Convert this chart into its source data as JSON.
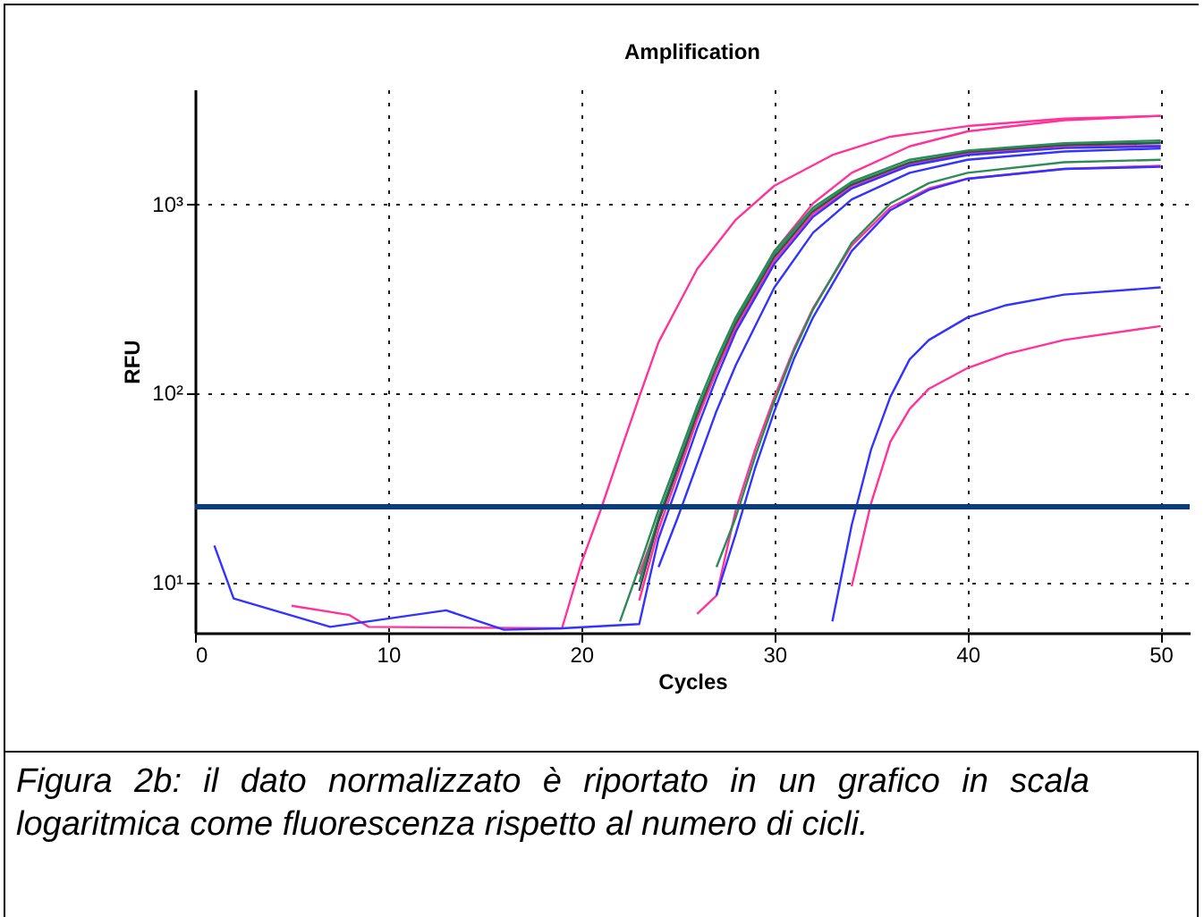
{
  "chart_data": {
    "type": "line",
    "title": "Amplification",
    "xlabel": "Cycles",
    "ylabel": "RFU",
    "log": "y",
    "grid": true,
    "marker": "none",
    "line_style": "solid",
    "xlim": [
      0,
      51.5
    ],
    "xticks": [
      0,
      10,
      20,
      30,
      40,
      50
    ],
    "ylim": [
      5.4,
      4000
    ],
    "yticks": [
      {
        "value": 10,
        "label": "10¹"
      },
      {
        "value": 100,
        "label": "10²"
      },
      {
        "value": 1000,
        "label": "10³"
      }
    ],
    "ref_lines": [
      {
        "axis": "y",
        "value": 25,
        "color": "#0b3d7a"
      }
    ],
    "annotations": [
      "Figura 2b: il dato normalizzato è riportato in un grafico in scala logaritmica come fluorescenza rispetto al numero di cicli."
    ],
    "series": [
      {
        "color": "#ff3399",
        "x": [
          5,
          8,
          9,
          19,
          20,
          21,
          22,
          23,
          24,
          26,
          28,
          30,
          33,
          36,
          40,
          45,
          50
        ],
        "values": [
          7.5,
          6.7,
          5.8,
          5.7,
          12.6,
          24,
          48,
          95,
          185,
          450,
          820,
          1240,
          1800,
          2250,
          2560,
          2800,
          2900
        ]
      },
      {
        "color": "#ff3399",
        "x": [
          23,
          24,
          25,
          26,
          27,
          28,
          30,
          32,
          34,
          37,
          40,
          45,
          50
        ],
        "values": [
          11,
          21,
          40,
          78,
          140,
          240,
          560,
          1000,
          1450,
          2000,
          2400,
          2750,
          2900
        ]
      },
      {
        "color": "#2e8b57",
        "x": [
          22,
          23,
          24,
          25,
          26,
          27,
          28,
          30,
          32,
          34,
          37,
          40,
          45,
          50
        ],
        "values": [
          6.2,
          12,
          24,
          45,
          85,
          150,
          250,
          560,
          950,
          1300,
          1700,
          1900,
          2080,
          2150
        ]
      },
      {
        "color": "#2e8b57",
        "x": [
          23,
          24,
          25,
          26,
          27,
          28,
          30,
          32,
          34,
          37,
          40,
          45,
          50
        ],
        "values": [
          10,
          22,
          42,
          80,
          140,
          240,
          540,
          920,
          1270,
          1650,
          1870,
          2050,
          2100
        ]
      },
      {
        "color": "#2f4f4f",
        "x": [
          23,
          24,
          25,
          26,
          27,
          28,
          30,
          32,
          34,
          37,
          40,
          45,
          50
        ],
        "values": [
          9,
          21,
          40,
          76,
          135,
          230,
          520,
          900,
          1250,
          1630,
          1850,
          2020,
          2080
        ]
      },
      {
        "color": "#ff3399",
        "x": [
          23,
          24,
          25,
          26,
          27,
          28,
          30,
          32,
          34,
          37,
          40,
          45,
          50
        ],
        "values": [
          8,
          19,
          37,
          72,
          130,
          220,
          500,
          880,
          1220,
          1600,
          1820,
          1980,
          2020
        ]
      },
      {
        "color": "#3333ff",
        "x": [
          1,
          2,
          7,
          13,
          16,
          19,
          23,
          24,
          25,
          26,
          27,
          28,
          30,
          32,
          34,
          37,
          40,
          45,
          50
        ],
        "values": [
          15.6,
          8.2,
          5.8,
          7.1,
          5.6,
          5.7,
          6,
          17,
          33,
          65,
          120,
          210,
          480,
          850,
          1200,
          1580,
          1800,
          1960,
          2000
        ]
      },
      {
        "color": "#3333ff",
        "x": [
          24,
          25,
          26,
          27,
          28,
          30,
          32,
          34,
          37,
          40,
          45,
          50
        ],
        "values": [
          12,
          22,
          42,
          80,
          140,
          360,
          700,
          1050,
          1450,
          1700,
          1880,
          1950
        ]
      },
      {
        "color": "#ff3399",
        "x": [
          26,
          27,
          28,
          29,
          30,
          31,
          32,
          34,
          36,
          38,
          40,
          45,
          50
        ],
        "values": [
          6.8,
          8.5,
          24,
          50,
          95,
          170,
          280,
          600,
          950,
          1200,
          1350,
          1520,
          1580
        ]
      },
      {
        "color": "#2e8b57",
        "x": [
          27,
          28,
          29,
          30,
          31,
          32,
          34,
          36,
          38,
          40,
          45,
          50
        ],
        "values": [
          12,
          22,
          46,
          90,
          165,
          275,
          620,
          1000,
          1280,
          1450,
          1650,
          1700
        ]
      },
      {
        "color": "#3333ff",
        "x": [
          27,
          28,
          29,
          30,
          31,
          32,
          34,
          36,
          38,
          40,
          45,
          50
        ],
        "values": [
          8.5,
          18,
          40,
          80,
          150,
          250,
          560,
          920,
          1180,
          1350,
          1520,
          1560
        ]
      },
      {
        "color": "#3333ff",
        "x": [
          33,
          34,
          35,
          36,
          37,
          38,
          40,
          42,
          45,
          50
        ],
        "values": [
          6.2,
          20,
          50,
          95,
          150,
          190,
          250,
          290,
          330,
          360
        ]
      },
      {
        "color": "#ff3399",
        "x": [
          34,
          35,
          36,
          37,
          38,
          40,
          42,
          45,
          50
        ],
        "values": [
          9.5,
          26,
          55,
          82,
          105,
          135,
          160,
          190,
          225
        ]
      }
    ]
  }
}
